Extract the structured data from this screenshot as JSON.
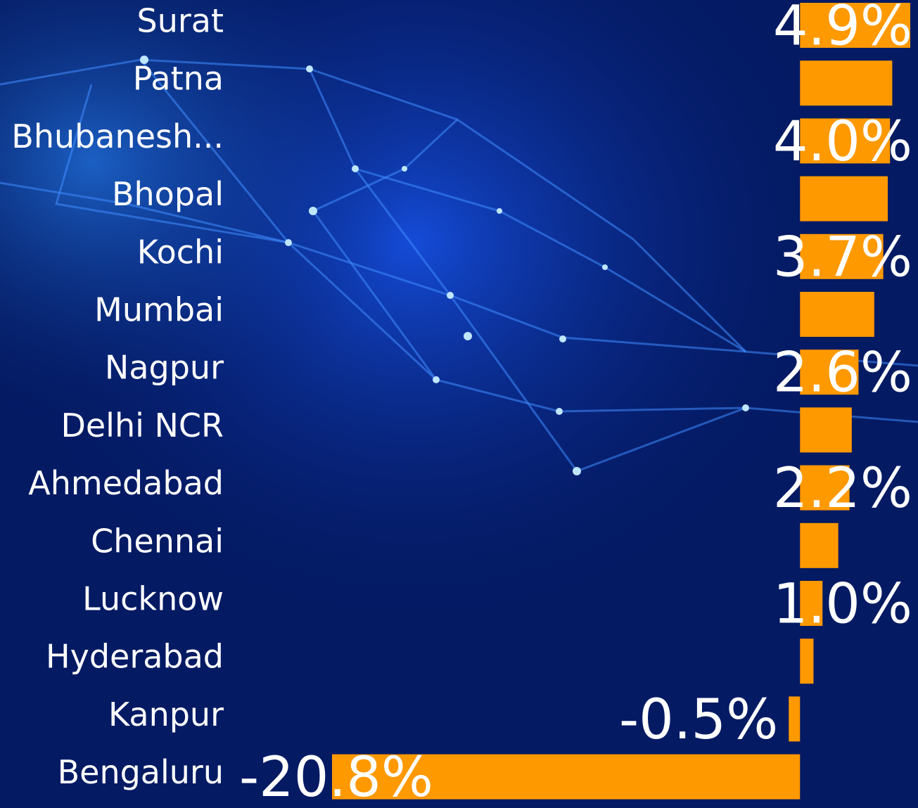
{
  "chart_data": {
    "type": "bar",
    "orientation": "horizontal",
    "categories": [
      "Surat",
      "Patna",
      "Bhubanesh...",
      "Bhopal",
      "Kochi",
      "Mumbai",
      "Nagpur",
      "Delhi NCR",
      "Ahmedabad",
      "Chennai",
      "Lucknow",
      "Hyderabad",
      "Kanpur",
      "Bengaluru"
    ],
    "values": [
      4.9,
      4.1,
      4.0,
      3.9,
      3.7,
      3.3,
      2.6,
      2.3,
      2.2,
      1.7,
      1.0,
      0.6,
      -0.5,
      -20.8
    ],
    "value_labels": [
      "4.9%",
      null,
      "4.0%",
      null,
      "3.7%",
      null,
      "2.6%",
      null,
      "2.2%",
      null,
      "1.0%",
      null,
      "-0.5%",
      "-20.8%"
    ],
    "color": "#ff9900"
  }
}
